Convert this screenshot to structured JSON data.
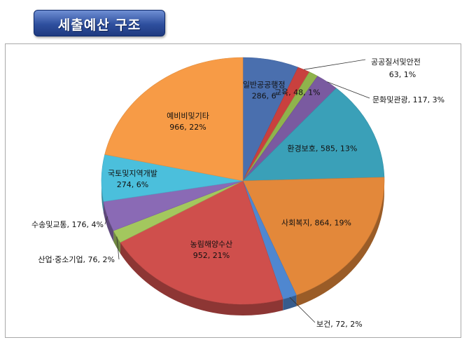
{
  "header": {
    "title": "세출예산 구조"
  },
  "chart_data": {
    "type": "pie",
    "title": "",
    "slices": [
      {
        "name": "일반공공행정",
        "value": 286,
        "label": "일반공공행정",
        "value_label": "286, 6",
        "color": "#4a6fae"
      },
      {
        "name": "공공질서및안전",
        "value": 63,
        "label": "공공질서및안전",
        "value_label": "63, 1%",
        "color": "#c9403e"
      },
      {
        "name": "교육",
        "value": 48,
        "label": "교육, 48, 1%",
        "color": "#8fb34c"
      },
      {
        "name": "문화및관광",
        "value": 117,
        "label": "문화및관광, 117, 3%",
        "color": "#7a5aa0"
      },
      {
        "name": "환경보호",
        "value": 585,
        "label": "환경보호, 585, 13%",
        "color": "#3aa0b8"
      },
      {
        "name": "사회복지",
        "value": 864,
        "label": "사회복지, 864, 19%",
        "color": "#e3883a"
      },
      {
        "name": "보건",
        "value": 72,
        "label": "보건, 72, 2%",
        "color": "#4f87d0"
      },
      {
        "name": "농림해양수산",
        "value": 952,
        "label": "농림해양수산",
        "value_label": "952, 21%",
        "color": "#cf4f4c"
      },
      {
        "name": "산업·중소기업",
        "value": 76,
        "label": "산업·중소기업, 76, 2%",
        "color": "#a3c75e"
      },
      {
        "name": "수송및교통",
        "value": 176,
        "label": "수송및교통, 176, 4%",
        "color": "#8a6ab5"
      },
      {
        "name": "국토및지역개발",
        "value": 274,
        "label": "국토및지역개발",
        "value_label": "274, 6%",
        "color": "#4bbfdc"
      },
      {
        "name": "예비비및기타",
        "value": 966,
        "label": "예비비및기타",
        "value_label": "966, 22%",
        "color": "#f79b46"
      }
    ]
  }
}
